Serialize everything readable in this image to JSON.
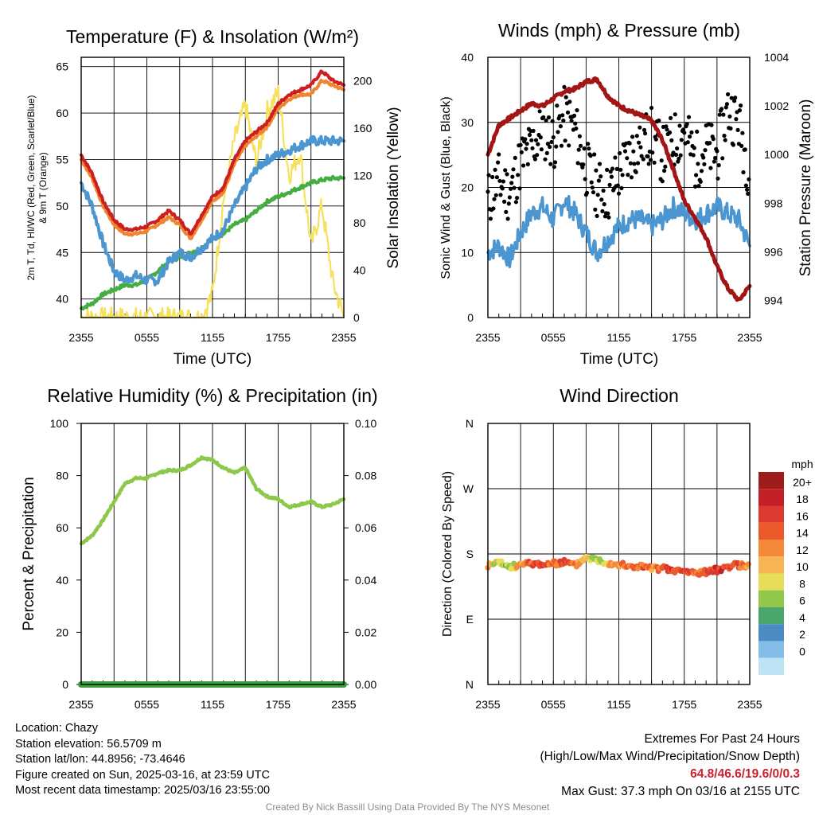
{
  "colors": {
    "temp": "#cc1f1f",
    "t9": "#f0842f",
    "dew": "#4b96d0",
    "wc": "#45ad42",
    "insol": "#f7e15c",
    "wind": "#4b96d0",
    "gust": "#000000",
    "pressure": "#a31515",
    "rh": "#8cc84a",
    "precip": "#3d9e3d"
  },
  "chart_data": [
    {
      "type": "line",
      "title": "Temperature (F) & Insolation (W/m²)",
      "xlabel": "Time (UTC)",
      "ylabel": "2m T, T_d, HI/WC (Red, Green, Scarlet/Blue) & 9m T (Orange)",
      "y2label": "Solar Insolation (Yellow)",
      "ylim": [
        38,
        66
      ],
      "y2lim": [
        0,
        220
      ],
      "yticks": [
        40,
        45,
        50,
        55,
        60,
        65
      ],
      "y2ticks": [
        0,
        40,
        80,
        120,
        160,
        200
      ],
      "xticks": [
        "2355",
        "0555",
        "1155",
        "1755",
        "2355"
      ],
      "x": [
        0,
        1,
        2,
        3,
        4,
        5,
        6,
        7,
        8,
        9,
        10,
        11,
        12,
        13,
        14,
        15,
        16,
        17,
        18,
        19,
        20,
        21,
        22,
        23,
        24
      ],
      "series": [
        {
          "key": "t9",
          "values": [
            55.0,
            53.0,
            50.0,
            48.0,
            47.0,
            47.0,
            47.3,
            48.0,
            48.8,
            48.0,
            46.5,
            48.5,
            50.5,
            51.5,
            54.5,
            56.5,
            57.5,
            58.5,
            60.5,
            61.5,
            62.0,
            62.0,
            63.5,
            63.0,
            62.5
          ]
        },
        {
          "key": "temp",
          "values": [
            55.5,
            53.5,
            50.5,
            48.5,
            47.5,
            47.5,
            47.8,
            48.5,
            49.5,
            48.5,
            47.0,
            49.0,
            51.0,
            52.0,
            55.0,
            57.0,
            58.0,
            59.0,
            61.0,
            62.0,
            62.5,
            63.0,
            64.5,
            63.5,
            63.0
          ]
        },
        {
          "key": "dew",
          "values": [
            52.5,
            50.0,
            46.0,
            43.0,
            42.0,
            42.5,
            42.0,
            42.0,
            44.0,
            45.0,
            44.5,
            45.5,
            46.5,
            47.5,
            50.0,
            52.0,
            54.0,
            55.0,
            55.5,
            56.0,
            56.5,
            57.0,
            57.0,
            57.0,
            57.0
          ]
        },
        {
          "key": "wc",
          "values": [
            39.0,
            39.5,
            40.5,
            41.0,
            41.5,
            41.5,
            42.0,
            43.0,
            44.0,
            44.5,
            45.0,
            45.5,
            46.5,
            47.0,
            48.0,
            48.5,
            49.5,
            50.5,
            51.0,
            51.5,
            52.0,
            52.5,
            52.8,
            53.0,
            53.0
          ]
        },
        {
          "key": "insol",
          "axis": "y2",
          "values": [
            0,
            0,
            0,
            0,
            0,
            0,
            0,
            0,
            0,
            0,
            0,
            0,
            20,
            100,
            150,
            180,
            130,
            175,
            190,
            120,
            140,
            60,
            95,
            30,
            0
          ]
        }
      ]
    },
    {
      "type": "line",
      "title": "Winds (mph) & Pressure (mb)",
      "xlabel": "Time (UTC)",
      "ylabel": "Sonic Wind & Gust (Blue, Black)",
      "y2label": "Station Pressure (Maroon)",
      "ylim": [
        0,
        40
      ],
      "y2lim": [
        993.3,
        1004
      ],
      "yticks": [
        0,
        10,
        20,
        30,
        40
      ],
      "y2ticks": [
        994,
        996,
        998,
        1000,
        1002,
        1004
      ],
      "xticks": [
        "2355",
        "0555",
        "1155",
        "1755",
        "2355"
      ],
      "x": [
        0,
        1,
        2,
        3,
        4,
        5,
        6,
        7,
        8,
        9,
        10,
        11,
        12,
        13,
        14,
        15,
        16,
        17,
        18,
        19,
        20,
        21,
        22,
        23,
        24
      ],
      "series": [
        {
          "key": "pressure",
          "axis": "y2",
          "values": [
            1000.0,
            1001.2,
            1001.5,
            1001.8,
            1002.1,
            1002.0,
            1002.3,
            1002.6,
            1002.7,
            1003.0,
            1003.1,
            1002.4,
            1002.0,
            1001.8,
            1001.6,
            1001.4,
            1000.6,
            999.4,
            998.1,
            997.4,
            996.6,
            995.4,
            994.5,
            994.0,
            994.6
          ]
        },
        {
          "key": "wind",
          "values": [
            10,
            11,
            9,
            13,
            16,
            17,
            15,
            18,
            16,
            13,
            10,
            12,
            14,
            15,
            15,
            14,
            15,
            17,
            16,
            15,
            16,
            17,
            16,
            15,
            11
          ]
        },
        {
          "key": "gust",
          "style": "dots",
          "values": [
            18,
            21,
            19,
            24,
            26,
            29,
            27,
            31,
            29,
            23,
            20,
            19,
            22,
            25,
            27,
            28,
            25,
            27,
            29,
            24,
            26,
            25,
            32,
            30,
            22
          ]
        }
      ]
    },
    {
      "type": "line",
      "title": "Relative Humidity (%) & Precipitation (in)",
      "xlabel": "",
      "ylabel": "Percent & Precipitation",
      "ylim": [
        0,
        100
      ],
      "y2lim": [
        0,
        0.1
      ],
      "yticks": [
        0,
        20,
        40,
        60,
        80,
        100
      ],
      "y2ticks": [
        "0.00",
        "0.02",
        "0.04",
        "0.06",
        "0.08",
        "0.10"
      ],
      "xticks": [
        "2355",
        "0555",
        "1155",
        "1755",
        "2355"
      ],
      "x": [
        0,
        1,
        2,
        3,
        4,
        5,
        6,
        7,
        8,
        9,
        10,
        11,
        12,
        13,
        14,
        15,
        16,
        17,
        18,
        19,
        20,
        21,
        22,
        23,
        24
      ],
      "series": [
        {
          "key": "rh",
          "values": [
            54,
            57,
            63,
            70,
            77,
            79,
            79,
            81,
            82,
            82,
            84,
            87,
            86,
            83,
            81,
            83,
            75,
            72,
            71,
            68,
            69,
            70,
            68,
            69,
            71
          ]
        },
        {
          "key": "precip",
          "axis": "y2",
          "values": [
            0,
            0,
            0,
            0,
            0,
            0,
            0,
            0,
            0,
            0,
            0,
            0,
            0,
            0,
            0,
            0,
            0,
            0,
            0,
            0,
            0,
            0,
            0,
            0,
            0
          ]
        }
      ]
    },
    {
      "type": "scatter",
      "title": "Wind Direction",
      "xlabel": "",
      "ylabel": "Direction (Colored By Speed)",
      "yticks": [
        "N",
        "E",
        "S",
        "W",
        "N"
      ],
      "ylim": [
        0,
        360
      ],
      "xticks": [
        "2355",
        "0555",
        "1155",
        "1755",
        "2355"
      ],
      "x": [
        0,
        1,
        2,
        3,
        4,
        5,
        6,
        7,
        8,
        9,
        10,
        11,
        12,
        13,
        14,
        15,
        16,
        17,
        18,
        19,
        20,
        21,
        22,
        23,
        24
      ],
      "series": [
        {
          "key": "direction",
          "values": [
            164,
            168,
            162,
            165,
            167,
            166,
            166,
            169,
            164,
            176,
            172,
            168,
            166,
            162,
            163,
            160,
            160,
            157,
            156,
            154,
            155,
            158,
            163,
            165,
            162
          ]
        },
        {
          "key": "speed",
          "values": [
            12,
            9,
            8,
            14,
            16,
            18,
            14,
            18,
            15,
            11,
            9,
            12,
            14,
            15,
            16,
            14,
            16,
            18,
            17,
            16,
            17,
            18,
            17,
            16,
            13
          ]
        }
      ],
      "legend": {
        "title": "mph",
        "labels": [
          "20+",
          "18",
          "16",
          "14",
          "12",
          "10",
          "8",
          "6",
          "4",
          "2",
          "0"
        ],
        "colors": [
          "#9e1c1c",
          "#c21f26",
          "#dc3a30",
          "#ec5a2c",
          "#f4893b",
          "#f6b552",
          "#e8dd58",
          "#92c84a",
          "#4aa66c",
          "#4b8cc4",
          "#83bde8",
          "#bfe3f6"
        ]
      }
    }
  ],
  "info": {
    "location": "Location: Chazy",
    "elevation": "Station elevation: 56.5709 m",
    "latlon": "Station lat/lon: 44.8956; -73.4646",
    "created": "Figure created on Sun, 2025-03-16, at 23:59 UTC",
    "recent": "Most recent data timestamp: 2025/03/16 23:55:00"
  },
  "extremes": {
    "title": "Extremes For Past 24 Hours",
    "subtitle": "(High/Low/Max Wind/Precipitation/Snow Depth)",
    "values": "64.8/46.6/19.6/0/0.3",
    "gust": "Max Gust: 37.3 mph On 03/16 at 2155 UTC"
  },
  "credit": "Created By Nick Bassill Using Data Provided By The NYS Mesonet"
}
